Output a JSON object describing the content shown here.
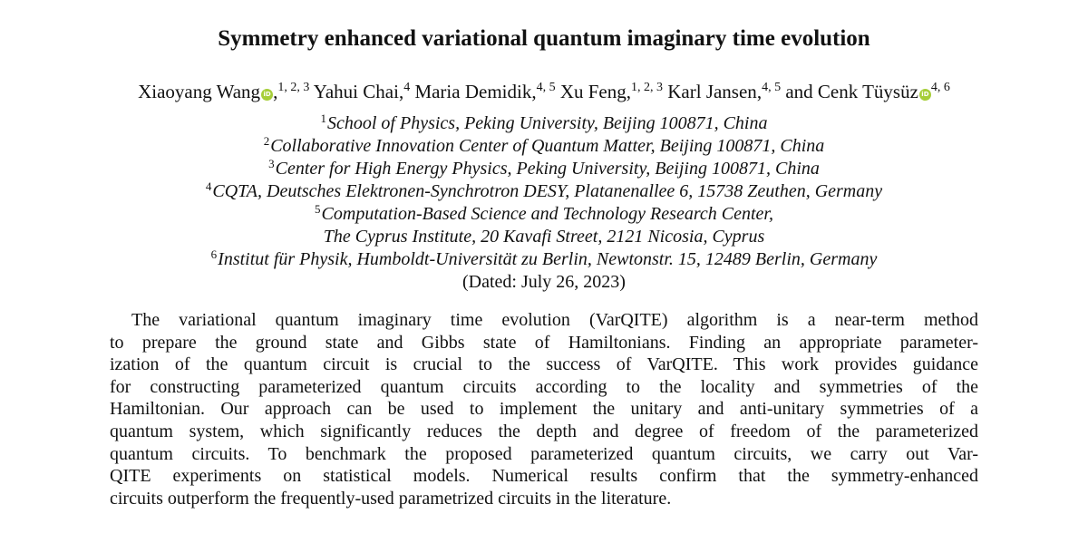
{
  "title": "Symmetry enhanced variational quantum imaginary time evolution",
  "authors": [
    {
      "name": "Xiaoyang Wang",
      "orcid": true,
      "affil": "1, 2, 3",
      "sep": ","
    },
    {
      "name": "Yahui Chai",
      "orcid": false,
      "affil": "4",
      "sep": ","
    },
    {
      "name": "Maria Demidik",
      "orcid": false,
      "affil": "4, 5",
      "sep": ","
    },
    {
      "name": "Xu Feng",
      "orcid": false,
      "affil": "1, 2, 3",
      "sep": ","
    },
    {
      "name": "Karl Jansen",
      "orcid": false,
      "affil": "4, 5",
      "sep": ","
    },
    {
      "name": "and Cenk Tüysüz",
      "orcid": true,
      "affil": "4, 6",
      "sep": ""
    }
  ],
  "orcid_icon": "iD",
  "orcid_color": "#a6ce39",
  "affiliations": [
    {
      "num": "1",
      "text": "School of Physics, Peking University, Beijing 100871, China"
    },
    {
      "num": "2",
      "text": "Collaborative Innovation Center of Quantum Matter, Beijing 100871, China"
    },
    {
      "num": "3",
      "text": "Center for High Energy Physics, Peking University, Beijing 100871, China"
    },
    {
      "num": "4",
      "text": "CQTA, Deutsches Elektronen-Synchrotron DESY, Platanenallee 6, 15738 Zeuthen, Germany"
    },
    {
      "num": "5",
      "text": "Computation-Based Science and Technology Research Center,"
    },
    {
      "num": "",
      "text": "The Cyprus Institute, 20 Kavafi Street, 2121 Nicosia, Cyprus"
    },
    {
      "num": "6",
      "text": "Institut für Physik, Humboldt-Universität zu Berlin, Newtonstr. 15, 12489 Berlin, Germany"
    }
  ],
  "dated": "(Dated: July 26, 2023)",
  "abstract_lines": [
    "The variational quantum imaginary time evolution (VarQITE) algorithm is a near-term method",
    "to prepare the ground state and Gibbs state of Hamiltonians. Finding an appropriate parameter-",
    "ization of the quantum circuit is crucial to the success of VarQITE. This work provides guidance",
    "for constructing parameterized quantum circuits according to the locality and symmetries of the",
    "Hamiltonian. Our approach can be used to implement the unitary and anti-unitary symmetries of a",
    "quantum system, which significantly reduces the depth and degree of freedom of the parameterized",
    "quantum circuits. To benchmark the proposed parameterized quantum circuits, we carry out Var-",
    "QITE experiments on statistical models. Numerical results confirm that the symmetry-enhanced",
    "circuits outperform the frequently-used parametrized circuits in the literature."
  ]
}
